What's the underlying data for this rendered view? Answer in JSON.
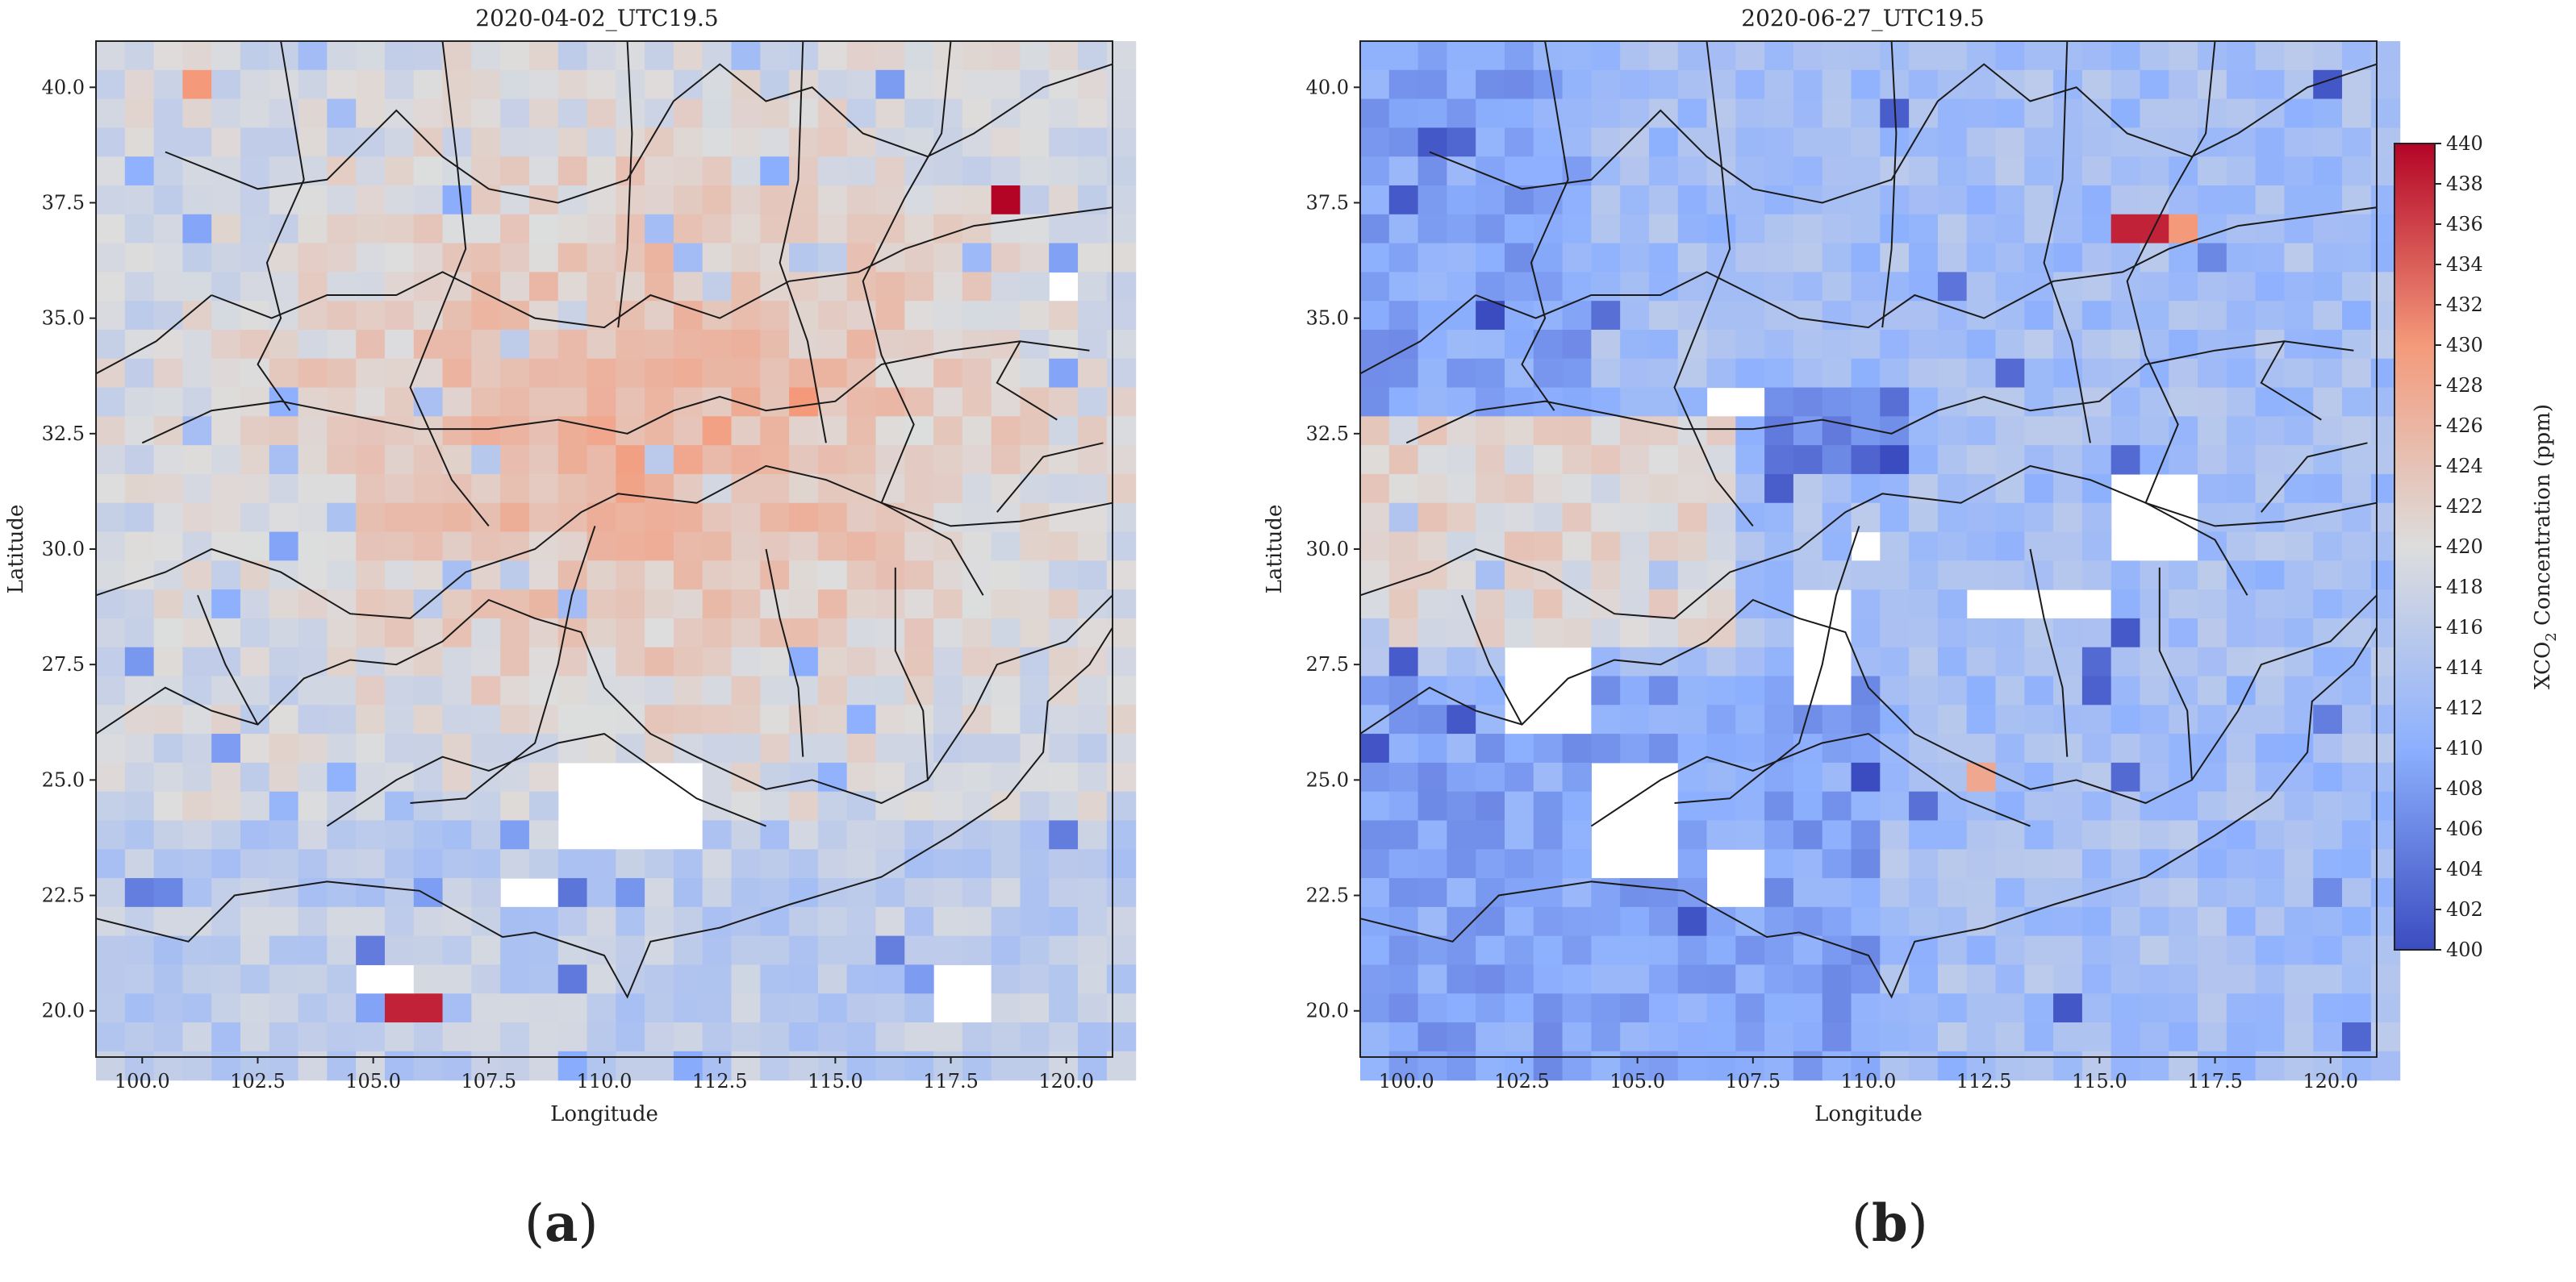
{
  "figure": {
    "panels": [
      {
        "id": "a",
        "title": "2020-04-02_UTC19.5",
        "xlabel": "Longitude",
        "ylabel": "Latitude",
        "label": "a",
        "x_ticks": [
          "100.0",
          "102.5",
          "105.0",
          "107.5",
          "110.0",
          "112.5",
          "115.0",
          "117.5",
          "120.0"
        ],
        "y_ticks": [
          "40.0",
          "37.5",
          "35.0",
          "32.5",
          "30.0",
          "27.5",
          "25.0",
          "22.5",
          "20.0"
        ]
      },
      {
        "id": "b",
        "title": "2020-06-27_UTC19.5",
        "xlabel": "Longitude",
        "ylabel": "Latitude",
        "label": "b",
        "x_ticks": [
          "100.0",
          "102.5",
          "105.0",
          "107.5",
          "110.0",
          "112.5",
          "115.0",
          "117.5",
          "120.0"
        ],
        "y_ticks": [
          "40.0",
          "37.5",
          "35.0",
          "32.5",
          "30.0",
          "27.5",
          "25.0",
          "22.5",
          "20.0"
        ]
      }
    ],
    "colorbar": {
      "label_prefix": "XCO",
      "label_sub": "2",
      "label_suffix": " Concentration (ppm)",
      "ticks": [
        "440",
        "438",
        "436",
        "434",
        "432",
        "430",
        "428",
        "426",
        "424",
        "422",
        "420",
        "418",
        "416",
        "414",
        "412",
        "410",
        "408",
        "406",
        "404",
        "402",
        "400"
      ],
      "min": 400,
      "max": 440,
      "colors": [
        "#3b4cc0",
        "#dddddd",
        "#b40426"
      ]
    }
  },
  "chart_data": [
    {
      "type": "heatmap",
      "title": "2020-04-02_UTC19.5",
      "xlabel": "Longitude",
      "ylabel": "Latitude",
      "xlim": [
        99,
        121
      ],
      "ylim": [
        19,
        41
      ],
      "units": "ppm",
      "value_range": [
        400,
        440
      ],
      "description_values": {
        "typical_range_ppm": [
          414,
          430
        ],
        "max_cells_ppm": [
          {
            "lon": 105.9,
            "lat": 20.1,
            "value": 438
          },
          {
            "lon": 118.8,
            "lat": 37.6,
            "value": 440
          }
        ],
        "missing_regions": true
      }
    },
    {
      "type": "heatmap",
      "title": "2020-06-27_UTC19.5",
      "xlabel": "Longitude",
      "ylabel": "Latitude",
      "xlim": [
        99,
        121
      ],
      "ylim": [
        19,
        41
      ],
      "units": "ppm",
      "value_range": [
        400,
        440
      ],
      "description_values": {
        "typical_range_ppm": [
          404,
          424
        ],
        "max_cells_ppm": [
          {
            "lon": 115.9,
            "lat": 36.9,
            "value": 438
          }
        ],
        "missing_regions": true
      }
    }
  ]
}
